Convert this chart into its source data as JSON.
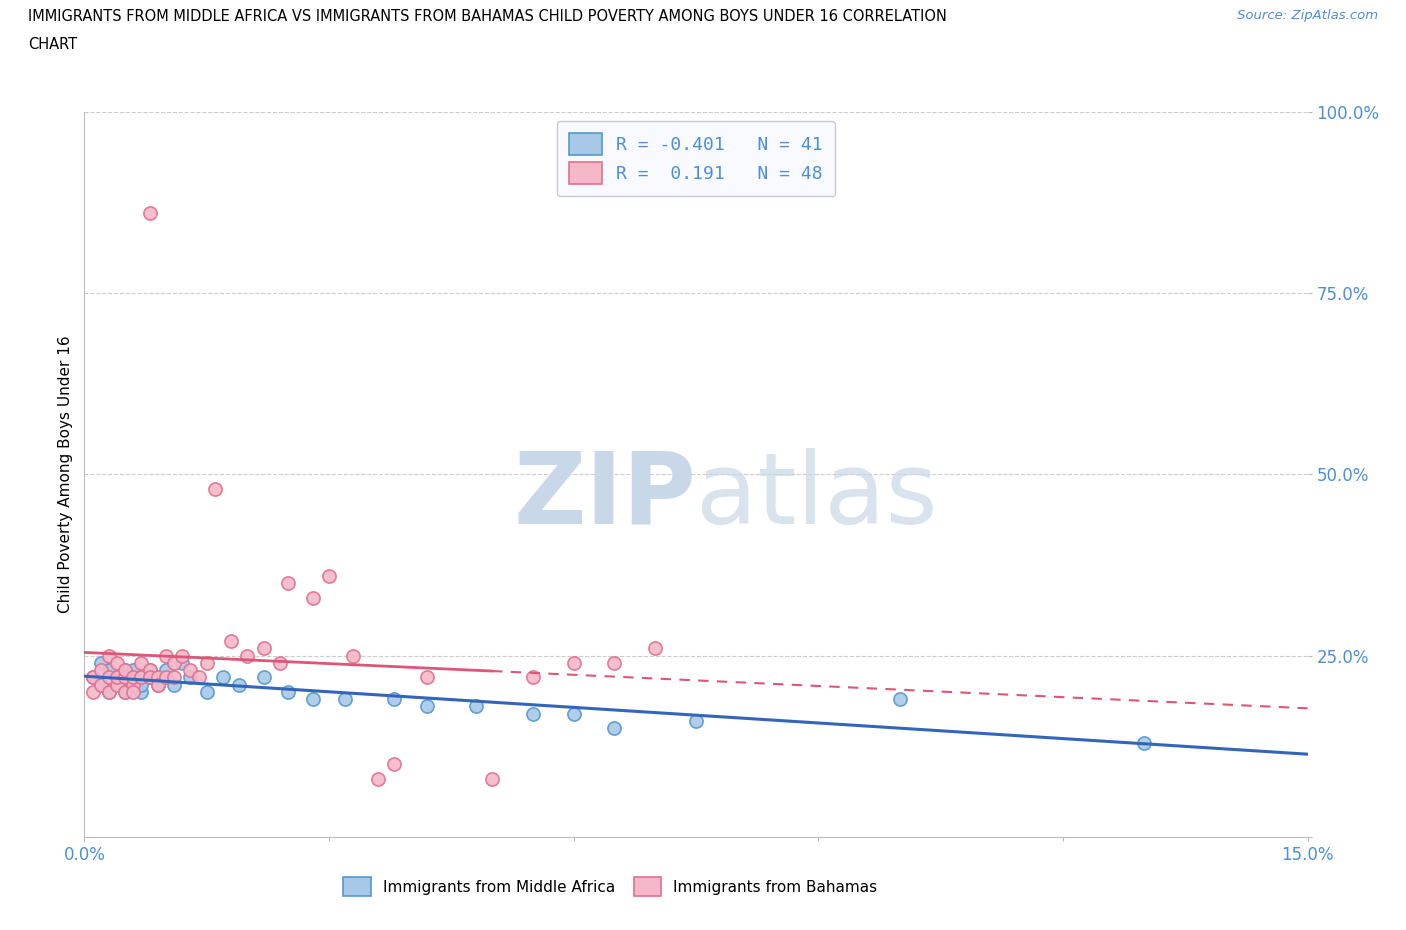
{
  "title_line1": "IMMIGRANTS FROM MIDDLE AFRICA VS IMMIGRANTS FROM BAHAMAS CHILD POVERTY AMONG BOYS UNDER 16 CORRELATION",
  "title_line2": "CHART",
  "source_text": "Source: ZipAtlas.com",
  "ylabel": "Child Poverty Among Boys Under 16",
  "xlim": [
    0.0,
    0.15
  ],
  "ylim": [
    0.0,
    1.0
  ],
  "xtick_positions": [
    0.0,
    0.03,
    0.06,
    0.09,
    0.12,
    0.15
  ],
  "xticklabels": [
    "0.0%",
    "",
    "",
    "",
    "",
    "15.0%"
  ],
  "ytick_positions": [
    0.0,
    0.25,
    0.5,
    0.75,
    1.0
  ],
  "yticklabels": [
    "",
    "25.0%",
    "50.0%",
    "75.0%",
    "100.0%"
  ],
  "blue_fill": "#a8c8e8",
  "blue_edge": "#5599cc",
  "pink_fill": "#f5b8c8",
  "pink_edge": "#e07090",
  "blue_trend_color": "#3366bb",
  "pink_trend_color": "#dd5577",
  "axis_color": "#4a90d9",
  "grid_color": "#cccccc",
  "watermark_color": "#d8e4f0",
  "r_blue": -0.401,
  "n_blue": 41,
  "r_pink": 0.191,
  "n_pink": 48,
  "blue_scatter_x": [
    0.001,
    0.002,
    0.002,
    0.003,
    0.003,
    0.004,
    0.004,
    0.005,
    0.005,
    0.005,
    0.006,
    0.006,
    0.006,
    0.007,
    0.007,
    0.007,
    0.008,
    0.008,
    0.009,
    0.009,
    0.01,
    0.01,
    0.011,
    0.012,
    0.013,
    0.015,
    0.017,
    0.019,
    0.022,
    0.025,
    0.028,
    0.032,
    0.038,
    0.042,
    0.048,
    0.055,
    0.06,
    0.065,
    0.075,
    0.1,
    0.13
  ],
  "blue_scatter_y": [
    0.22,
    0.21,
    0.24,
    0.2,
    0.23,
    0.21,
    0.22,
    0.2,
    0.22,
    0.23,
    0.22,
    0.21,
    0.23,
    0.22,
    0.2,
    0.21,
    0.22,
    0.23,
    0.21,
    0.22,
    0.22,
    0.23,
    0.21,
    0.24,
    0.22,
    0.2,
    0.22,
    0.21,
    0.22,
    0.2,
    0.19,
    0.19,
    0.19,
    0.18,
    0.18,
    0.17,
    0.17,
    0.15,
    0.16,
    0.19,
    0.13
  ],
  "pink_scatter_x": [
    0.001,
    0.001,
    0.002,
    0.002,
    0.003,
    0.003,
    0.003,
    0.004,
    0.004,
    0.004,
    0.005,
    0.005,
    0.005,
    0.006,
    0.006,
    0.006,
    0.007,
    0.007,
    0.008,
    0.008,
    0.008,
    0.009,
    0.009,
    0.01,
    0.01,
    0.011,
    0.011,
    0.012,
    0.013,
    0.014,
    0.015,
    0.016,
    0.018,
    0.02,
    0.022,
    0.024,
    0.025,
    0.028,
    0.03,
    0.033,
    0.036,
    0.038,
    0.042,
    0.05,
    0.055,
    0.06,
    0.065,
    0.07
  ],
  "pink_scatter_y": [
    0.22,
    0.2,
    0.21,
    0.23,
    0.22,
    0.2,
    0.25,
    0.21,
    0.22,
    0.24,
    0.2,
    0.22,
    0.23,
    0.21,
    0.22,
    0.2,
    0.22,
    0.24,
    0.23,
    0.22,
    0.86,
    0.22,
    0.21,
    0.25,
    0.22,
    0.22,
    0.24,
    0.25,
    0.23,
    0.22,
    0.24,
    0.48,
    0.27,
    0.25,
    0.26,
    0.24,
    0.35,
    0.33,
    0.36,
    0.25,
    0.08,
    0.1,
    0.22,
    0.08,
    0.22,
    0.24,
    0.24,
    0.26
  ],
  "legend_facecolor": "#f8f9ff",
  "legend_edgecolor": "#bbbbcc"
}
